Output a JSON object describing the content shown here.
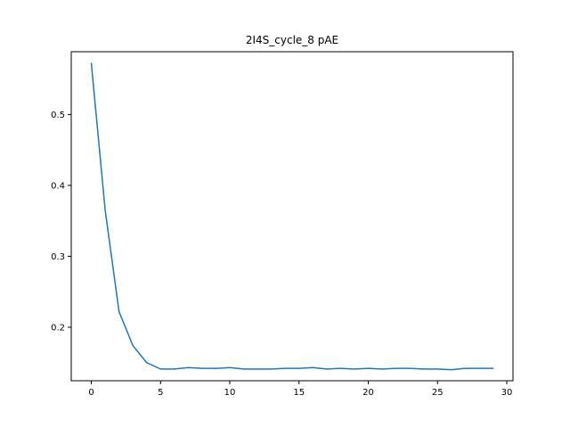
{
  "chart_data": {
    "type": "line",
    "title": "2I4S_cycle_8 pAE",
    "xlabel": "",
    "ylabel": "",
    "xlim": [
      -1.45,
      30.45
    ],
    "ylim": [
      0.1245,
      0.5885
    ],
    "xticks": [
      0,
      5,
      10,
      15,
      20,
      25,
      30
    ],
    "yticks": [
      0.2,
      0.3,
      0.4,
      0.5
    ],
    "grid": false,
    "series": [
      {
        "color": "#1f77b4",
        "x": [
          0,
          1,
          2,
          3,
          4,
          5,
          6,
          7,
          8,
          9,
          10,
          11,
          12,
          13,
          14,
          15,
          16,
          17,
          18,
          19,
          20,
          21,
          22,
          23,
          24,
          25,
          26,
          27,
          28,
          29
        ],
        "y": [
          0.572,
          0.365,
          0.222,
          0.174,
          0.15,
          0.141,
          0.141,
          0.143,
          0.142,
          0.142,
          0.143,
          0.141,
          0.141,
          0.141,
          0.142,
          0.142,
          0.143,
          0.141,
          0.142,
          0.141,
          0.142,
          0.141,
          0.142,
          0.142,
          0.141,
          0.141,
          0.14,
          0.142,
          0.142,
          0.142
        ]
      }
    ]
  }
}
